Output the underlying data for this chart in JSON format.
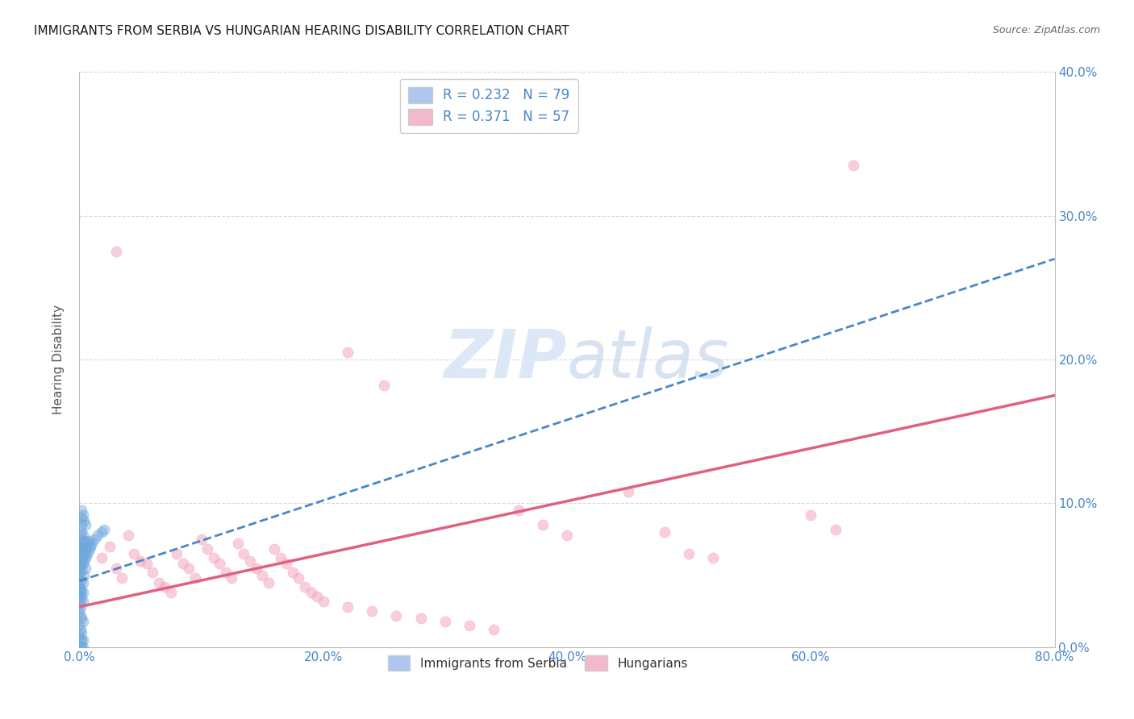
{
  "title": "IMMIGRANTS FROM SERBIA VS HUNGARIAN HEARING DISABILITY CORRELATION CHART",
  "source": "Source: ZipAtlas.com",
  "ylabel": "Hearing Disability",
  "xlim": [
    0.0,
    0.8
  ],
  "ylim": [
    0.0,
    0.4
  ],
  "serbia_color": "#6fa8dc",
  "serbian_line_color": "#4a86c8",
  "hungarian_color": "#f4a7c0",
  "hungarian_line_color": "#e06080",
  "background_color": "#ffffff",
  "grid_color": "#d8d8d8",
  "title_fontsize": 11,
  "watermark_color": "#dce8f5",
  "watermark_fontsize": 60,
  "serbia_points": [
    [
      0.0,
      0.05
    ],
    [
      0.0,
      0.045
    ],
    [
      0.0,
      0.04
    ],
    [
      0.0,
      0.055
    ],
    [
      0.0,
      0.06
    ],
    [
      0.0,
      0.035
    ],
    [
      0.0,
      0.03
    ],
    [
      0.0,
      0.065
    ],
    [
      0.0,
      0.07
    ],
    [
      0.0,
      0.048
    ],
    [
      0.0,
      0.042
    ],
    [
      0.0,
      0.038
    ],
    [
      0.001,
      0.052
    ],
    [
      0.001,
      0.058
    ],
    [
      0.001,
      0.062
    ],
    [
      0.001,
      0.068
    ],
    [
      0.001,
      0.072
    ],
    [
      0.001,
      0.078
    ],
    [
      0.001,
      0.046
    ],
    [
      0.001,
      0.038
    ],
    [
      0.001,
      0.032
    ],
    [
      0.001,
      0.028
    ],
    [
      0.002,
      0.055
    ],
    [
      0.002,
      0.06
    ],
    [
      0.002,
      0.065
    ],
    [
      0.002,
      0.07
    ],
    [
      0.002,
      0.075
    ],
    [
      0.002,
      0.08
    ],
    [
      0.002,
      0.085
    ],
    [
      0.002,
      0.09
    ],
    [
      0.002,
      0.04
    ],
    [
      0.002,
      0.035
    ],
    [
      0.003,
      0.058
    ],
    [
      0.003,
      0.063
    ],
    [
      0.003,
      0.068
    ],
    [
      0.003,
      0.073
    ],
    [
      0.003,
      0.078
    ],
    [
      0.003,
      0.045
    ],
    [
      0.003,
      0.038
    ],
    [
      0.003,
      0.032
    ],
    [
      0.004,
      0.06
    ],
    [
      0.004,
      0.065
    ],
    [
      0.004,
      0.07
    ],
    [
      0.004,
      0.05
    ],
    [
      0.005,
      0.062
    ],
    [
      0.005,
      0.068
    ],
    [
      0.005,
      0.074
    ],
    [
      0.005,
      0.055
    ],
    [
      0.006,
      0.064
    ],
    [
      0.006,
      0.07
    ],
    [
      0.007,
      0.066
    ],
    [
      0.007,
      0.072
    ],
    [
      0.008,
      0.068
    ],
    [
      0.008,
      0.074
    ],
    [
      0.009,
      0.07
    ],
    [
      0.01,
      0.072
    ],
    [
      0.012,
      0.075
    ],
    [
      0.015,
      0.078
    ],
    [
      0.018,
      0.08
    ],
    [
      0.02,
      0.082
    ],
    [
      0.002,
      0.095
    ],
    [
      0.003,
      0.092
    ],
    [
      0.004,
      0.088
    ],
    [
      0.005,
      0.085
    ],
    [
      0.0,
      0.025
    ],
    [
      0.001,
      0.022
    ],
    [
      0.002,
      0.02
    ],
    [
      0.003,
      0.018
    ],
    [
      0.0,
      0.015
    ],
    [
      0.001,
      0.012
    ],
    [
      0.002,
      0.01
    ],
    [
      0.0,
      0.008
    ],
    [
      0.001,
      0.005
    ],
    [
      0.002,
      0.005
    ],
    [
      0.003,
      0.005
    ],
    [
      0.0,
      0.0
    ],
    [
      0.001,
      0.0
    ],
    [
      0.002,
      0.0
    ],
    [
      0.003,
      0.0
    ]
  ],
  "hungarian_points": [
    [
      0.018,
      0.062
    ],
    [
      0.025,
      0.07
    ],
    [
      0.03,
      0.055
    ],
    [
      0.035,
      0.048
    ],
    [
      0.04,
      0.078
    ],
    [
      0.045,
      0.065
    ],
    [
      0.05,
      0.06
    ],
    [
      0.055,
      0.058
    ],
    [
      0.06,
      0.052
    ],
    [
      0.065,
      0.045
    ],
    [
      0.07,
      0.042
    ],
    [
      0.075,
      0.038
    ],
    [
      0.08,
      0.065
    ],
    [
      0.085,
      0.058
    ],
    [
      0.09,
      0.055
    ],
    [
      0.095,
      0.048
    ],
    [
      0.1,
      0.075
    ],
    [
      0.105,
      0.068
    ],
    [
      0.11,
      0.062
    ],
    [
      0.115,
      0.058
    ],
    [
      0.12,
      0.052
    ],
    [
      0.125,
      0.048
    ],
    [
      0.13,
      0.072
    ],
    [
      0.135,
      0.065
    ],
    [
      0.14,
      0.06
    ],
    [
      0.145,
      0.055
    ],
    [
      0.15,
      0.05
    ],
    [
      0.155,
      0.045
    ],
    [
      0.16,
      0.068
    ],
    [
      0.165,
      0.062
    ],
    [
      0.17,
      0.058
    ],
    [
      0.175,
      0.052
    ],
    [
      0.18,
      0.048
    ],
    [
      0.185,
      0.042
    ],
    [
      0.19,
      0.038
    ],
    [
      0.195,
      0.035
    ],
    [
      0.2,
      0.032
    ],
    [
      0.22,
      0.028
    ],
    [
      0.24,
      0.025
    ],
    [
      0.26,
      0.022
    ],
    [
      0.28,
      0.02
    ],
    [
      0.3,
      0.018
    ],
    [
      0.32,
      0.015
    ],
    [
      0.34,
      0.012
    ],
    [
      0.03,
      0.275
    ],
    [
      0.22,
      0.205
    ],
    [
      0.25,
      0.182
    ],
    [
      0.635,
      0.335
    ],
    [
      0.36,
      0.095
    ],
    [
      0.38,
      0.085
    ],
    [
      0.4,
      0.078
    ],
    [
      0.45,
      0.108
    ],
    [
      0.48,
      0.08
    ],
    [
      0.5,
      0.065
    ],
    [
      0.52,
      0.062
    ],
    [
      0.6,
      0.092
    ],
    [
      0.62,
      0.082
    ]
  ],
  "serbia_trend": [
    0.0,
    0.046,
    0.8,
    0.27
  ],
  "hungarian_trend": [
    0.0,
    0.028,
    0.8,
    0.175
  ]
}
